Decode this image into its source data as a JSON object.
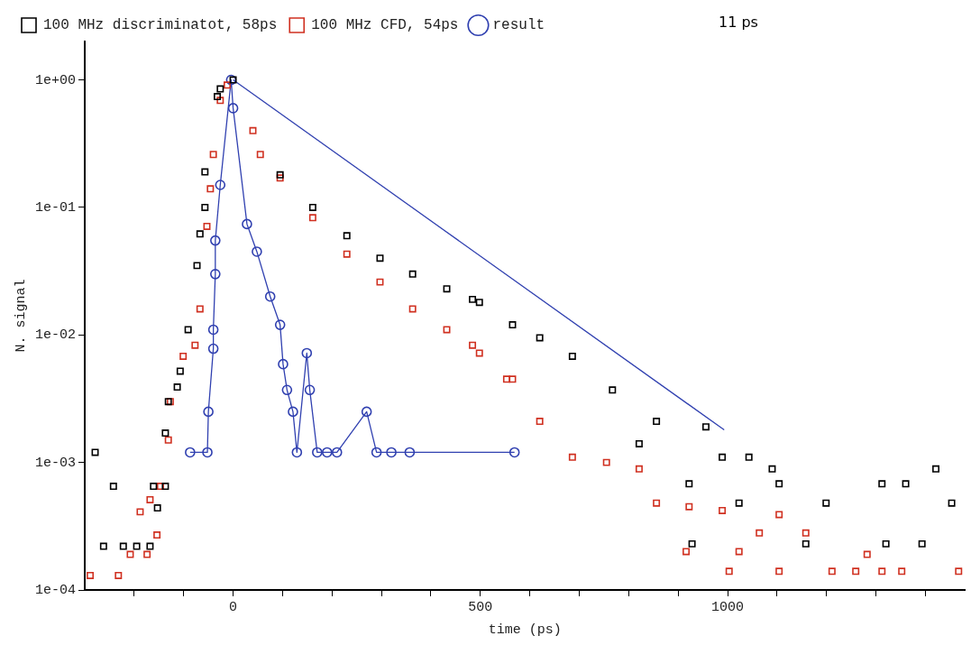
{
  "chart_data": {
    "type": "scatter",
    "xlabel": "time (ps)",
    "ylabel": "N. signal",
    "log": "y",
    "grid": false,
    "legend": "top",
    "xlim": [
      -300,
      1480
    ],
    "ylim": [
      0.0001,
      2
    ],
    "xticks": [
      {
        "value": -200,
        "label": null
      },
      {
        "value": -100,
        "label": null
      },
      0,
      {
        "value": 100,
        "label": null
      },
      {
        "value": 200,
        "label": null
      },
      {
        "value": 300,
        "label": null
      },
      {
        "value": 400,
        "label": null
      },
      500,
      {
        "value": 600,
        "label": null
      },
      {
        "value": 700,
        "label": null
      },
      {
        "value": 800,
        "label": null
      },
      {
        "value": 900,
        "label": null
      },
      1000,
      {
        "value": 1100,
        "label": null
      },
      {
        "value": 1200,
        "label": null
      },
      {
        "value": 1300,
        "label": null
      },
      {
        "value": 1400,
        "label": null
      }
    ],
    "yticks": [
      {
        "value": 0.0001,
        "label": "1e-04"
      },
      {
        "value": 0.001,
        "label": "1e-03"
      },
      {
        "value": 0.01,
        "label": "1e-02"
      },
      {
        "value": 0.1,
        "label": "1e-01"
      },
      {
        "value": 1,
        "label": "1e+00"
      }
    ],
    "annotations": [
      "11 ps"
    ],
    "series": [
      {
        "name": "100 MHz discriminatot, 58ps",
        "type": "scatter",
        "marker": "square",
        "color": "#000000",
        "x": [
          -279,
          -262,
          -242,
          -222,
          -195,
          -168,
          -161,
          -153,
          -137,
          -137,
          -131,
          -113,
          -107,
          -91,
          -73,
          -67,
          -57,
          -57,
          -32,
          -26,
          0,
          95,
          161,
          230,
          297,
          363,
          432,
          484,
          498,
          565,
          620,
          686,
          767,
          821,
          856,
          922,
          928,
          956,
          989,
          1023,
          1043,
          1090,
          1104,
          1158,
          1199,
          1312,
          1320,
          1360,
          1393,
          1421,
          1453
        ],
        "values": [
          0.0012,
          0.00022,
          0.00065,
          0.00022,
          0.00022,
          0.00022,
          0.00065,
          0.00044,
          0.00065,
          0.0017,
          0.003,
          0.0039,
          0.0052,
          0.011,
          0.035,
          0.062,
          0.1,
          0.19,
          0.74,
          0.85,
          1,
          0.18,
          0.1,
          0.06,
          0.04,
          0.03,
          0.023,
          0.019,
          0.018,
          0.012,
          0.0095,
          0.0068,
          0.0037,
          0.0014,
          0.0021,
          0.00068,
          0.00023,
          0.0019,
          0.0011,
          0.00048,
          0.0011,
          0.00089,
          0.00068,
          0.00023,
          0.00048,
          0.00068,
          0.00023,
          0.00068,
          0.00023,
          0.00089,
          0.00048
        ]
      },
      {
        "name": "100 MHz CFD, 54ps",
        "type": "scatter",
        "marker": "square",
        "color": "#d03020",
        "x": [
          -289,
          -232,
          -208,
          -188,
          -174,
          -168,
          -154,
          -147,
          -131,
          -127,
          -101,
          -77,
          -67,
          -53,
          -46,
          -40,
          -26,
          -12,
          40,
          55,
          95,
          161,
          230,
          297,
          363,
          432,
          484,
          498,
          553,
          565,
          620,
          686,
          755,
          821,
          856,
          916,
          922,
          989,
          1003,
          1023,
          1064,
          1104,
          1104,
          1158,
          1211,
          1259,
          1282,
          1312,
          1352,
          1467
        ],
        "values": [
          0.00013,
          0.00013,
          0.00019,
          0.00041,
          0.00019,
          0.00051,
          0.00027,
          0.00065,
          0.0015,
          0.003,
          0.0068,
          0.0083,
          0.016,
          0.071,
          0.14,
          0.26,
          0.69,
          0.91,
          0.4,
          0.26,
          0.17,
          0.083,
          0.043,
          0.026,
          0.016,
          0.011,
          0.0083,
          0.0072,
          0.0045,
          0.0045,
          0.0021,
          0.0011,
          0.001,
          0.00089,
          0.00048,
          0.0002,
          0.00045,
          0.00042,
          0.00014,
          0.0002,
          0.00028,
          0.00039,
          0.00014,
          0.00028,
          0.00014,
          0.00014,
          0.00019,
          0.00014,
          0.00014,
          0.00014
        ]
      },
      {
        "name": "result",
        "type": "line",
        "marker": "circle",
        "line_style": "solid",
        "color": "#3040b0",
        "x": [
          -87,
          -52,
          -50,
          -40,
          -40,
          -36,
          -36,
          -26,
          -4,
          0,
          28,
          48,
          75,
          95,
          101,
          109,
          121,
          129,
          149,
          155,
          170,
          190,
          210,
          270,
          290,
          320,
          357,
          569
        ],
        "values": [
          0.0012,
          0.0012,
          0.0025,
          0.0078,
          0.011,
          0.03,
          0.055,
          0.15,
          1,
          0.6,
          0.074,
          0.045,
          0.02,
          0.012,
          0.0059,
          0.0037,
          0.0025,
          0.0012,
          0.0072,
          0.0037,
          0.0012,
          0.0012,
          0.0012,
          0.0025,
          0.0012,
          0.0012,
          0.0012,
          0.0012
        ]
      },
      {
        "type": "line",
        "marker": "none",
        "line_style": "solid",
        "color": "#3040b0",
        "x": [
          0,
          993
        ],
        "values": [
          1,
          0.0018
        ]
      }
    ]
  }
}
